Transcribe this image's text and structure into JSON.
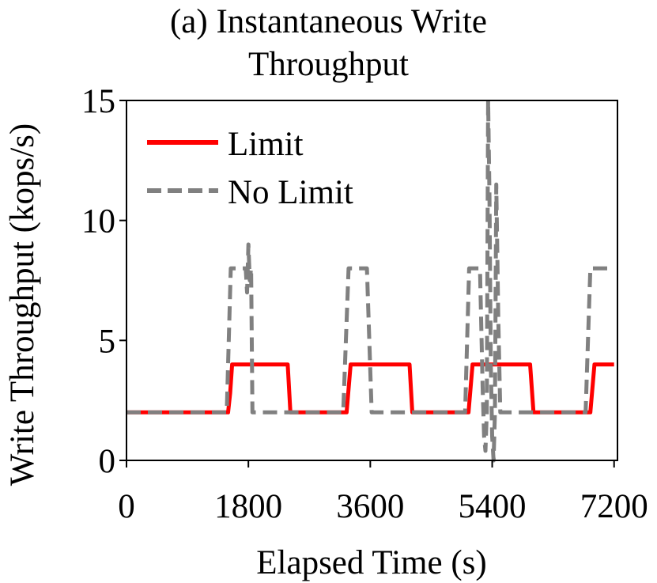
{
  "chart_data": {
    "type": "line",
    "title_line1": "(a) Instantaneous Write",
    "title_line2": "Throughput",
    "xlabel": "Elapsed Time (s)",
    "ylabel": "Write Throughput (kops/s)",
    "xlim": [
      0,
      7250
    ],
    "ylim": [
      0,
      15
    ],
    "xticks": [
      0,
      1800,
      3600,
      5400,
      7200
    ],
    "xtick_labels": [
      "0",
      "1800",
      "3600",
      "5400",
      "7200"
    ],
    "yticks": [
      0,
      5,
      10,
      15
    ],
    "ytick_labels": [
      "0",
      "5",
      "10",
      "15"
    ],
    "grid": false,
    "legend_position": "top-left",
    "series": [
      {
        "name": "Limit",
        "color": "#ff0000",
        "style": "solid",
        "points": [
          [
            0,
            2
          ],
          [
            1500,
            2
          ],
          [
            1530,
            2.8
          ],
          [
            1560,
            4
          ],
          [
            2380,
            4
          ],
          [
            2420,
            2
          ],
          [
            3250,
            2
          ],
          [
            3310,
            4
          ],
          [
            4180,
            4
          ],
          [
            4220,
            2
          ],
          [
            5050,
            2
          ],
          [
            5110,
            4
          ],
          [
            5960,
            4
          ],
          [
            6010,
            2
          ],
          [
            6850,
            2
          ],
          [
            6910,
            4
          ],
          [
            7200,
            4
          ]
        ]
      },
      {
        "name": "No Limit",
        "color": "#808080",
        "style": "dashed",
        "points": [
          [
            0,
            2
          ],
          [
            1480,
            2
          ],
          [
            1540,
            8
          ],
          [
            1760,
            8
          ],
          [
            1780,
            7
          ],
          [
            1800,
            9
          ],
          [
            1820,
            7.5
          ],
          [
            1840,
            8
          ],
          [
            1860,
            2
          ],
          [
            3200,
            2
          ],
          [
            3280,
            8
          ],
          [
            3550,
            8
          ],
          [
            3620,
            2
          ],
          [
            5000,
            2
          ],
          [
            5060,
            8
          ],
          [
            5220,
            8
          ],
          [
            5260,
            3
          ],
          [
            5280,
            1
          ],
          [
            5300,
            0.4
          ],
          [
            5320,
            2
          ],
          [
            5340,
            15
          ],
          [
            5360,
            11
          ],
          [
            5380,
            4
          ],
          [
            5400,
            1
          ],
          [
            5420,
            0
          ],
          [
            5440,
            2
          ],
          [
            5460,
            11.5
          ],
          [
            5490,
            6
          ],
          [
            5520,
            2
          ],
          [
            6780,
            2
          ],
          [
            6850,
            8
          ],
          [
            7200,
            8
          ]
        ]
      }
    ]
  }
}
